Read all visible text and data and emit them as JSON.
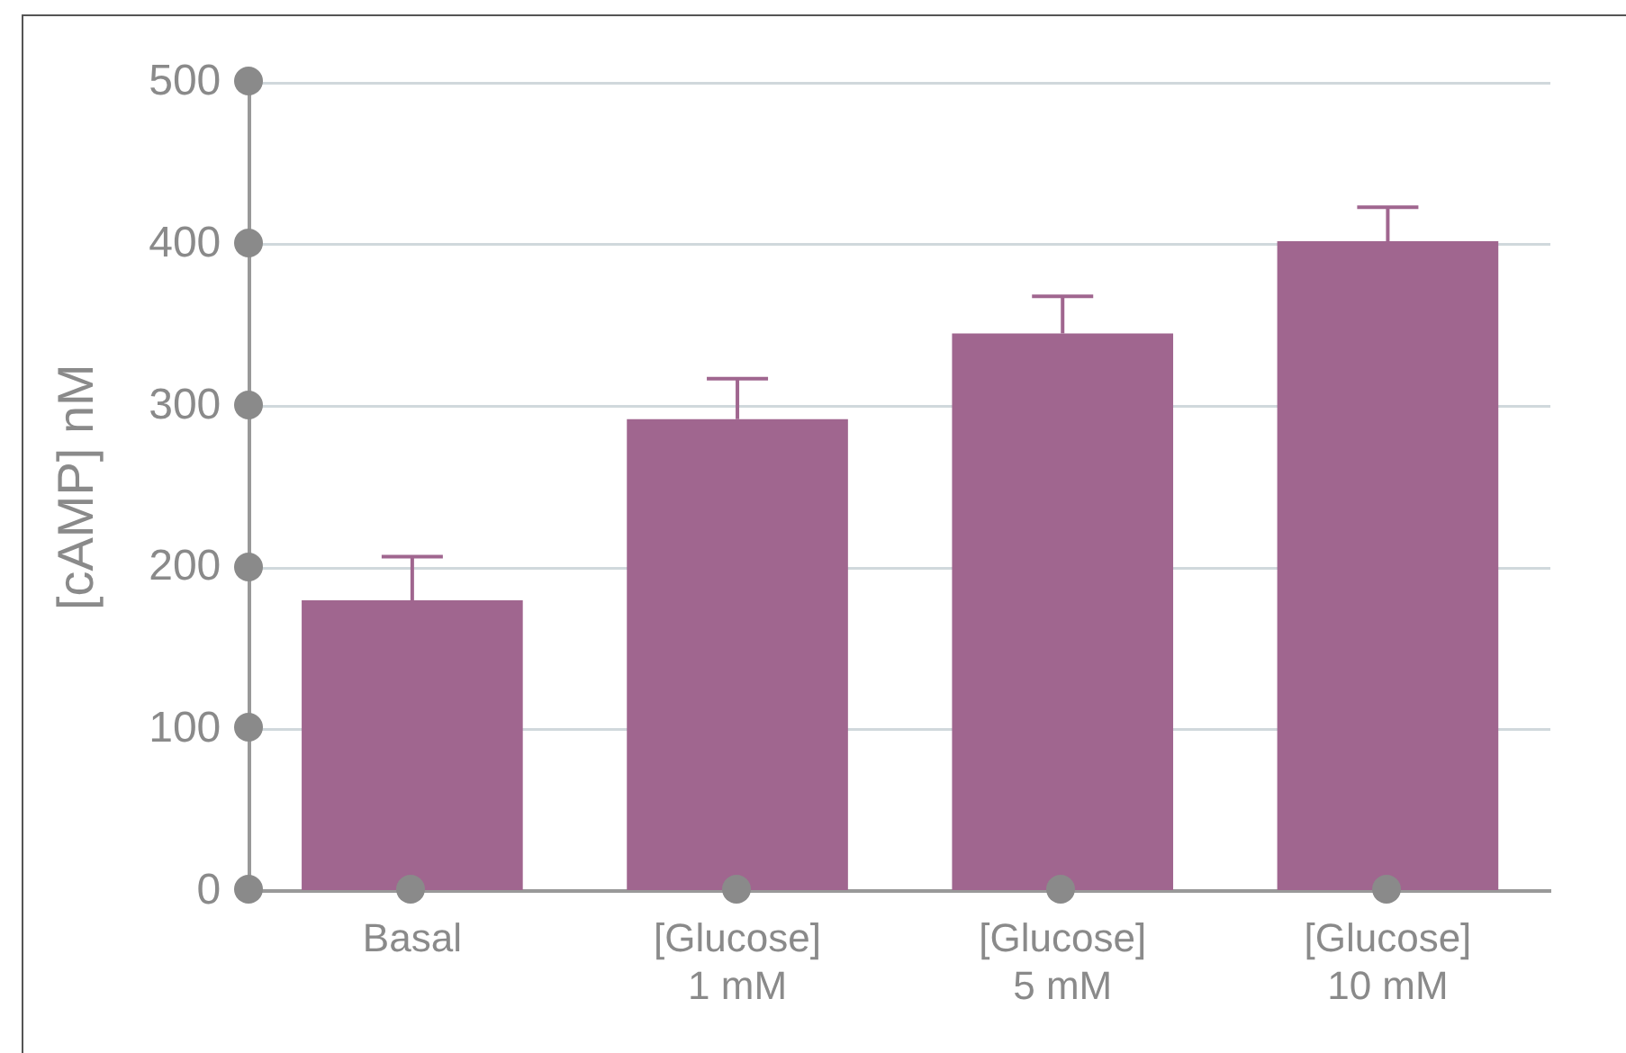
{
  "chart_data": {
    "type": "bar",
    "ylabel": "[cAMP] nM",
    "categories": [
      "Basal",
      "[Glucose]\n1 mM",
      "[Glucose]\n5 mM",
      "[Glucose]\n10 mM"
    ],
    "values": [
      180,
      292,
      345,
      402
    ],
    "color": "#a0668f",
    "errors": [
      [
        180,
        207
      ],
      [
        292,
        317
      ],
      [
        345,
        368
      ],
      [
        402,
        423
      ]
    ],
    "ylim": [
      0,
      500
    ],
    "yticks": [
      0,
      100,
      200,
      300,
      400,
      500
    ],
    "grid": "y"
  }
}
